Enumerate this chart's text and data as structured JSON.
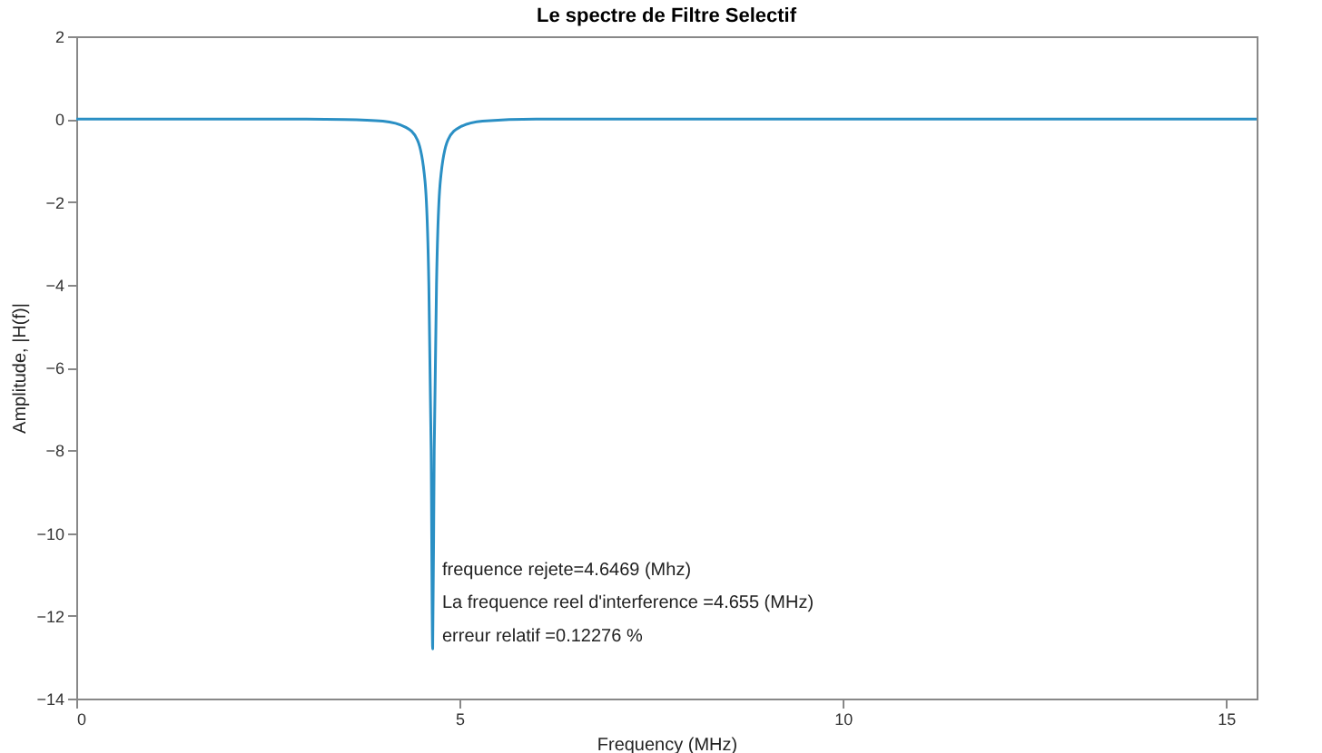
{
  "chart_data": {
    "type": "line",
    "title": "Le spectre de Filtre Selectif",
    "xlabel": "Frequency (MHz)",
    "ylabel": "Amplitude, |H(f)|",
    "x": [
      0,
      2,
      3,
      3.5,
      4.0,
      4.3,
      4.45,
      4.55,
      4.6,
      4.63,
      4.65,
      4.67,
      4.7,
      4.75,
      4.85,
      5.0,
      5.3,
      6,
      8,
      10,
      12,
      15.4
    ],
    "series": [
      {
        "color": "#2a8fc4",
        "values": [
          0,
          0,
          0,
          -0.01,
          -0.05,
          -0.2,
          -0.5,
          -1.5,
          -4,
          -8,
          -12.8,
          -8,
          -4,
          -1.5,
          -0.5,
          -0.2,
          -0.05,
          0,
          0,
          0,
          0,
          0
        ]
      }
    ],
    "xlim": [
      0,
      15.4
    ],
    "xticks": [
      0,
      5,
      10,
      15
    ],
    "ylim": [
      -14,
      2
    ],
    "yticks": [
      -14,
      -12,
      -10,
      -8,
      -6,
      -4,
      -2,
      0,
      2
    ],
    "grid": false,
    "annotations": [
      "frequence rejete=4.6469 (Mhz)",
      "La frequence reel d'interference =4.655 (MHz)",
      "erreur relatif =0.12276 %"
    ]
  }
}
